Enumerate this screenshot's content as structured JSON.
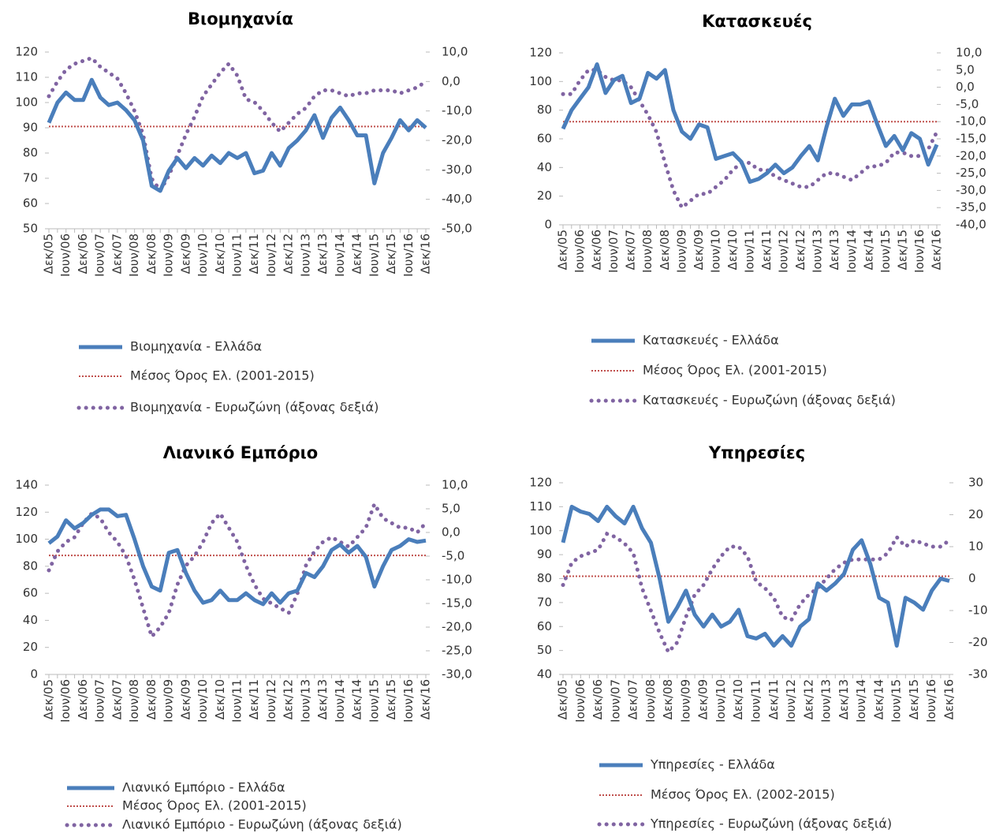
{
  "chart_data": [
    {
      "type": "line",
      "title": "Βιομηχανία",
      "categories": [
        "Δεκ/05",
        null,
        "Ιουν/06",
        null,
        "Δεκ/06",
        null,
        "Ιουν/07",
        null,
        "Δεκ/07",
        null,
        "Ιουν/08",
        null,
        "Δεκ/08",
        null,
        "Ιουν/09",
        null,
        "Δεκ/09",
        null,
        "Ιουν/10",
        null,
        "Δεκ/10",
        null,
        "Ιουν/11",
        null,
        "Δεκ/11",
        null,
        "Ιουν/12",
        null,
        "Δεκ/12",
        null,
        "Ιουν/13",
        null,
        "Δεκ/13",
        null,
        "Ιουν/14",
        null,
        "Δεκ/14",
        null,
        "Ιουν/15",
        null,
        "Δεκ/15",
        null,
        "Ιουν/16",
        null,
        "Δεκ/16"
      ],
      "series": [
        {
          "name": "Βιομηχανία  - Ελλάδα",
          "color": "#4a7ebb",
          "style": "solid",
          "values": [
            92,
            100,
            104,
            101,
            101,
            109,
            102,
            99,
            100,
            97,
            93,
            85,
            67,
            65,
            73,
            78,
            74,
            78,
            75,
            79,
            76,
            80,
            78,
            80,
            72,
            73,
            80,
            75,
            82,
            85,
            89,
            95,
            86,
            94,
            98,
            93,
            87,
            87,
            68,
            80,
            86,
            93,
            89,
            93,
            90
          ]
        },
        {
          "name": "Βιομηχανία - Ευρωζώνη (άξονας δεξιά)",
          "color": "#8064a2",
          "style": "dotted",
          "axis": "y2",
          "values": [
            -5,
            0,
            4,
            6,
            7,
            8,
            5,
            3,
            1,
            -4,
            -10,
            -18,
            -33,
            -37,
            -32,
            -25,
            -18,
            -12,
            -5,
            -1,
            3,
            6,
            2,
            -6,
            -7,
            -10,
            -14,
            -17,
            -14,
            -11,
            -9,
            -5,
            -3,
            -3,
            -4,
            -5,
            -4,
            -4,
            -3,
            -3,
            -3,
            -4,
            -3,
            -2,
            0
          ]
        }
      ],
      "reference_line": {
        "name": "Μέσος Όρος Ελ. (2001-2015)",
        "color": "#c0504d",
        "value": 90.5
      },
      "ylim": [
        50,
        120
      ],
      "yticks": [
        50,
        60,
        70,
        80,
        90,
        100,
        110,
        120
      ],
      "y2lim": [
        -50,
        10
      ],
      "y2ticks": [
        {
          "value": -50,
          "label": "-50,0"
        },
        {
          "value": -40,
          "label": "-40,0"
        },
        {
          "value": -30,
          "label": "-30,0"
        },
        {
          "value": -20,
          "label": "-20,0"
        },
        {
          "value": -10,
          "label": "-10,0"
        },
        {
          "value": 0,
          "label": "0,0"
        },
        {
          "value": 10,
          "label": "10,0"
        }
      ]
    },
    {
      "type": "line",
      "title": "Κατασκευές",
      "categories": [
        "Δεκ/05",
        null,
        "Ιουν/06",
        null,
        "Δεκ/06",
        null,
        "Ιουν/07",
        null,
        "Δεκ/07",
        null,
        "Ιουν/08",
        null,
        "Δεκ/08",
        null,
        "Ιουν/09",
        null,
        "Δεκ/09",
        null,
        "Ιουν/10",
        null,
        "Δεκ/10",
        null,
        "Ιουν/11",
        null,
        "Δεκ/11",
        null,
        "Ιουν/12",
        null,
        "Δεκ/12",
        null,
        "Ιουν/13",
        null,
        "Δεκ/13",
        null,
        "Ιουν/14",
        null,
        "Δεκ/14",
        null,
        "Ιουν/15",
        null,
        "Δεκ/15",
        null,
        "Ιουν/16",
        null,
        "Δεκ/16"
      ],
      "series": [
        {
          "name": "Κατασκευές  - Ελλάδα",
          "color": "#4a7ebb",
          "style": "solid",
          "values": [
            67,
            80,
            88,
            96,
            112,
            92,
            101,
            104,
            85,
            88,
            106,
            102,
            108,
            80,
            65,
            60,
            70,
            68,
            46,
            48,
            50,
            44,
            30,
            32,
            36,
            42,
            36,
            40,
            48,
            55,
            45,
            68,
            88,
            76,
            84,
            84,
            86,
            70,
            55,
            62,
            52,
            64,
            60,
            42,
            56
          ]
        },
        {
          "name": "Κατασκευές - Ευρωζώνη (άξονας δεξιά)",
          "color": "#8064a2",
          "style": "dotted",
          "axis": "y2",
          "values": [
            -2,
            -2,
            2,
            5,
            5,
            3,
            2,
            2,
            0,
            -4,
            -8,
            -13,
            -22,
            -30,
            -35,
            -33,
            -31,
            -31,
            -29,
            -27,
            -24,
            -22,
            -22,
            -24,
            -24,
            -26,
            -27,
            -28,
            -29,
            -29,
            -27,
            -25,
            -25,
            -26,
            -27,
            -25,
            -23,
            -23,
            -22,
            -19,
            -19,
            -20,
            -20,
            -18,
            -13
          ]
        }
      ],
      "reference_line": {
        "name": "Μέσος Όρος Ελ. (2001-2015)",
        "color": "#c0504d",
        "value": 72
      },
      "ylim": [
        0,
        120
      ],
      "yticks": [
        0,
        20,
        40,
        60,
        80,
        100,
        120
      ],
      "y2lim": [
        -40,
        10
      ],
      "y2ticks": [
        {
          "value": -40,
          "label": "-40,0"
        },
        {
          "value": -35,
          "label": "-35,0"
        },
        {
          "value": -30,
          "label": "-30,0"
        },
        {
          "value": -25,
          "label": "-25,0"
        },
        {
          "value": -20,
          "label": "-20,0"
        },
        {
          "value": -15,
          "label": "-15,0"
        },
        {
          "value": -10,
          "label": "-10,0"
        },
        {
          "value": -5,
          "label": "-5,0"
        },
        {
          "value": 0,
          "label": "0,0"
        },
        {
          "value": 5,
          "label": "5,0"
        },
        {
          "value": 10,
          "label": "10,0"
        }
      ]
    },
    {
      "type": "line",
      "title": "Λιανικό Εμπόριο",
      "categories": [
        "Δεκ/05",
        null,
        "Ιουν/06",
        null,
        "Δεκ/06",
        null,
        "Ιουν/07",
        null,
        "Δεκ/07",
        null,
        "Ιουν/08",
        null,
        "Δεκ/08",
        null,
        "Ιουν/09",
        null,
        "Δεκ/09",
        null,
        "Ιουν/10",
        null,
        "Δεκ/10",
        null,
        "Ιουν/11",
        null,
        "Δεκ/11",
        null,
        "Ιουν/12",
        null,
        "Δεκ/12",
        null,
        "Ιουν/13",
        null,
        "Δεκ/13",
        null,
        "Ιουν/14",
        null,
        "Δεκ/14",
        null,
        "Ιουν/15",
        null,
        "Δεκ/15",
        null,
        "Ιουν/16",
        null,
        "Δεκ/16"
      ],
      "series": [
        {
          "name": "Λιανικό Εμπόριο  - Ελλάδα",
          "color": "#4a7ebb",
          "style": "solid",
          "values": [
            97,
            102,
            114,
            108,
            112,
            118,
            122,
            122,
            117,
            118,
            100,
            80,
            65,
            62,
            90,
            92,
            75,
            62,
            53,
            55,
            62,
            55,
            55,
            60,
            55,
            52,
            60,
            53,
            60,
            62,
            75,
            72,
            80,
            92,
            96,
            90,
            95,
            87,
            65,
            80,
            92,
            95,
            100,
            98,
            99
          ]
        },
        {
          "name": "Λιανικό Εμπόριο - Ευρωζώνη (άξονας δεξιά)",
          "color": "#8064a2",
          "style": "dotted",
          "axis": "y2",
          "values": [
            -8,
            -4,
            -2,
            -1,
            2,
            4,
            3,
            0,
            -2,
            -5,
            -10,
            -16,
            -22,
            -20,
            -17,
            -11,
            -7,
            -5,
            -2,
            2,
            4,
            1,
            -2,
            -7,
            -11,
            -14,
            -15,
            -16,
            -17,
            -13,
            -7,
            -4,
            -2,
            -1,
            -2,
            -3,
            -1,
            1,
            6,
            3,
            2,
            1,
            1,
            0,
            2
          ]
        }
      ],
      "reference_line": {
        "name": "Μέσος Όρος Ελ.  (2001-2015)",
        "color": "#c0504d",
        "value": 88
      },
      "ylim": [
        0,
        140
      ],
      "yticks": [
        0,
        20,
        40,
        60,
        80,
        100,
        120,
        140
      ],
      "y2lim": [
        -30,
        10
      ],
      "y2ticks": [
        {
          "value": -30,
          "label": "-30,0"
        },
        {
          "value": -25,
          "label": "-25,0"
        },
        {
          "value": -20,
          "label": "-20,0"
        },
        {
          "value": -15,
          "label": "-15,0"
        },
        {
          "value": -10,
          "label": "-10,0"
        },
        {
          "value": -5,
          "label": "-5,0"
        },
        {
          "value": 0,
          "label": "0,0"
        },
        {
          "value": 5,
          "label": "5,0"
        },
        {
          "value": 10,
          "label": "10,0"
        }
      ]
    },
    {
      "type": "line",
      "title": "Υπηρεσίες",
      "categories": [
        "Δεκ/05",
        null,
        "Ιουν/06",
        null,
        "Δεκ/06",
        null,
        "Ιουν/07",
        null,
        "Δεκ/07",
        null,
        "Ιουν/08",
        null,
        "Δεκ/08",
        null,
        "Ιουν/09",
        null,
        "Δεκ/09",
        null,
        "Ιουν/10",
        null,
        "Δεκ/10",
        null,
        "Ιουν/11",
        null,
        "Δεκ/11",
        null,
        "Ιουν/12",
        null,
        "Δεκ/12",
        null,
        "Ιουν/13",
        null,
        "Δεκ/13",
        null,
        "Ιουν/14",
        null,
        "Δεκ/14",
        null,
        "Ιουν/15",
        null,
        "Δεκ/15",
        null,
        "Ιουν/16",
        null,
        "Δεκ/16"
      ],
      "series": [
        {
          "name": "Υπηρεσίες  - Ελλάδα",
          "color": "#4a7ebb",
          "style": "solid",
          "values": [
            95,
            110,
            108,
            107,
            104,
            110,
            106,
            103,
            110,
            101,
            95,
            80,
            62,
            68,
            75,
            65,
            60,
            65,
            60,
            62,
            67,
            56,
            55,
            57,
            52,
            56,
            52,
            60,
            63,
            78,
            75,
            78,
            82,
            92,
            96,
            86,
            72,
            70,
            52,
            72,
            70,
            67,
            75,
            80,
            79
          ]
        },
        {
          "name": "Υπηρεσίες - Ευρωζώνη (άξονας δεξιά)",
          "color": "#8064a2",
          "style": "dotted",
          "axis": "y2",
          "values": [
            -2,
            5,
            7,
            8,
            9,
            14,
            13,
            11,
            8,
            -3,
            -10,
            -17,
            -23,
            -20,
            -12,
            -5,
            -2,
            3,
            7,
            10,
            10,
            7,
            -1,
            -3,
            -6,
            -12,
            -13,
            -8,
            -5,
            -3,
            0,
            3,
            5,
            6,
            6,
            6,
            6,
            8,
            13,
            10,
            12,
            11,
            10,
            10,
            12
          ]
        }
      ],
      "reference_line": {
        "name": "Μέσος Όρος Ελ. (2002-2015)",
        "color": "#c0504d",
        "value": 81
      },
      "ylim": [
        40,
        120
      ],
      "yticks": [
        40,
        50,
        60,
        70,
        80,
        90,
        100,
        110,
        120
      ],
      "y2lim": [
        -30,
        30
      ],
      "y2ticks": [
        -30,
        -20,
        -10,
        0,
        10,
        20,
        30
      ]
    }
  ]
}
